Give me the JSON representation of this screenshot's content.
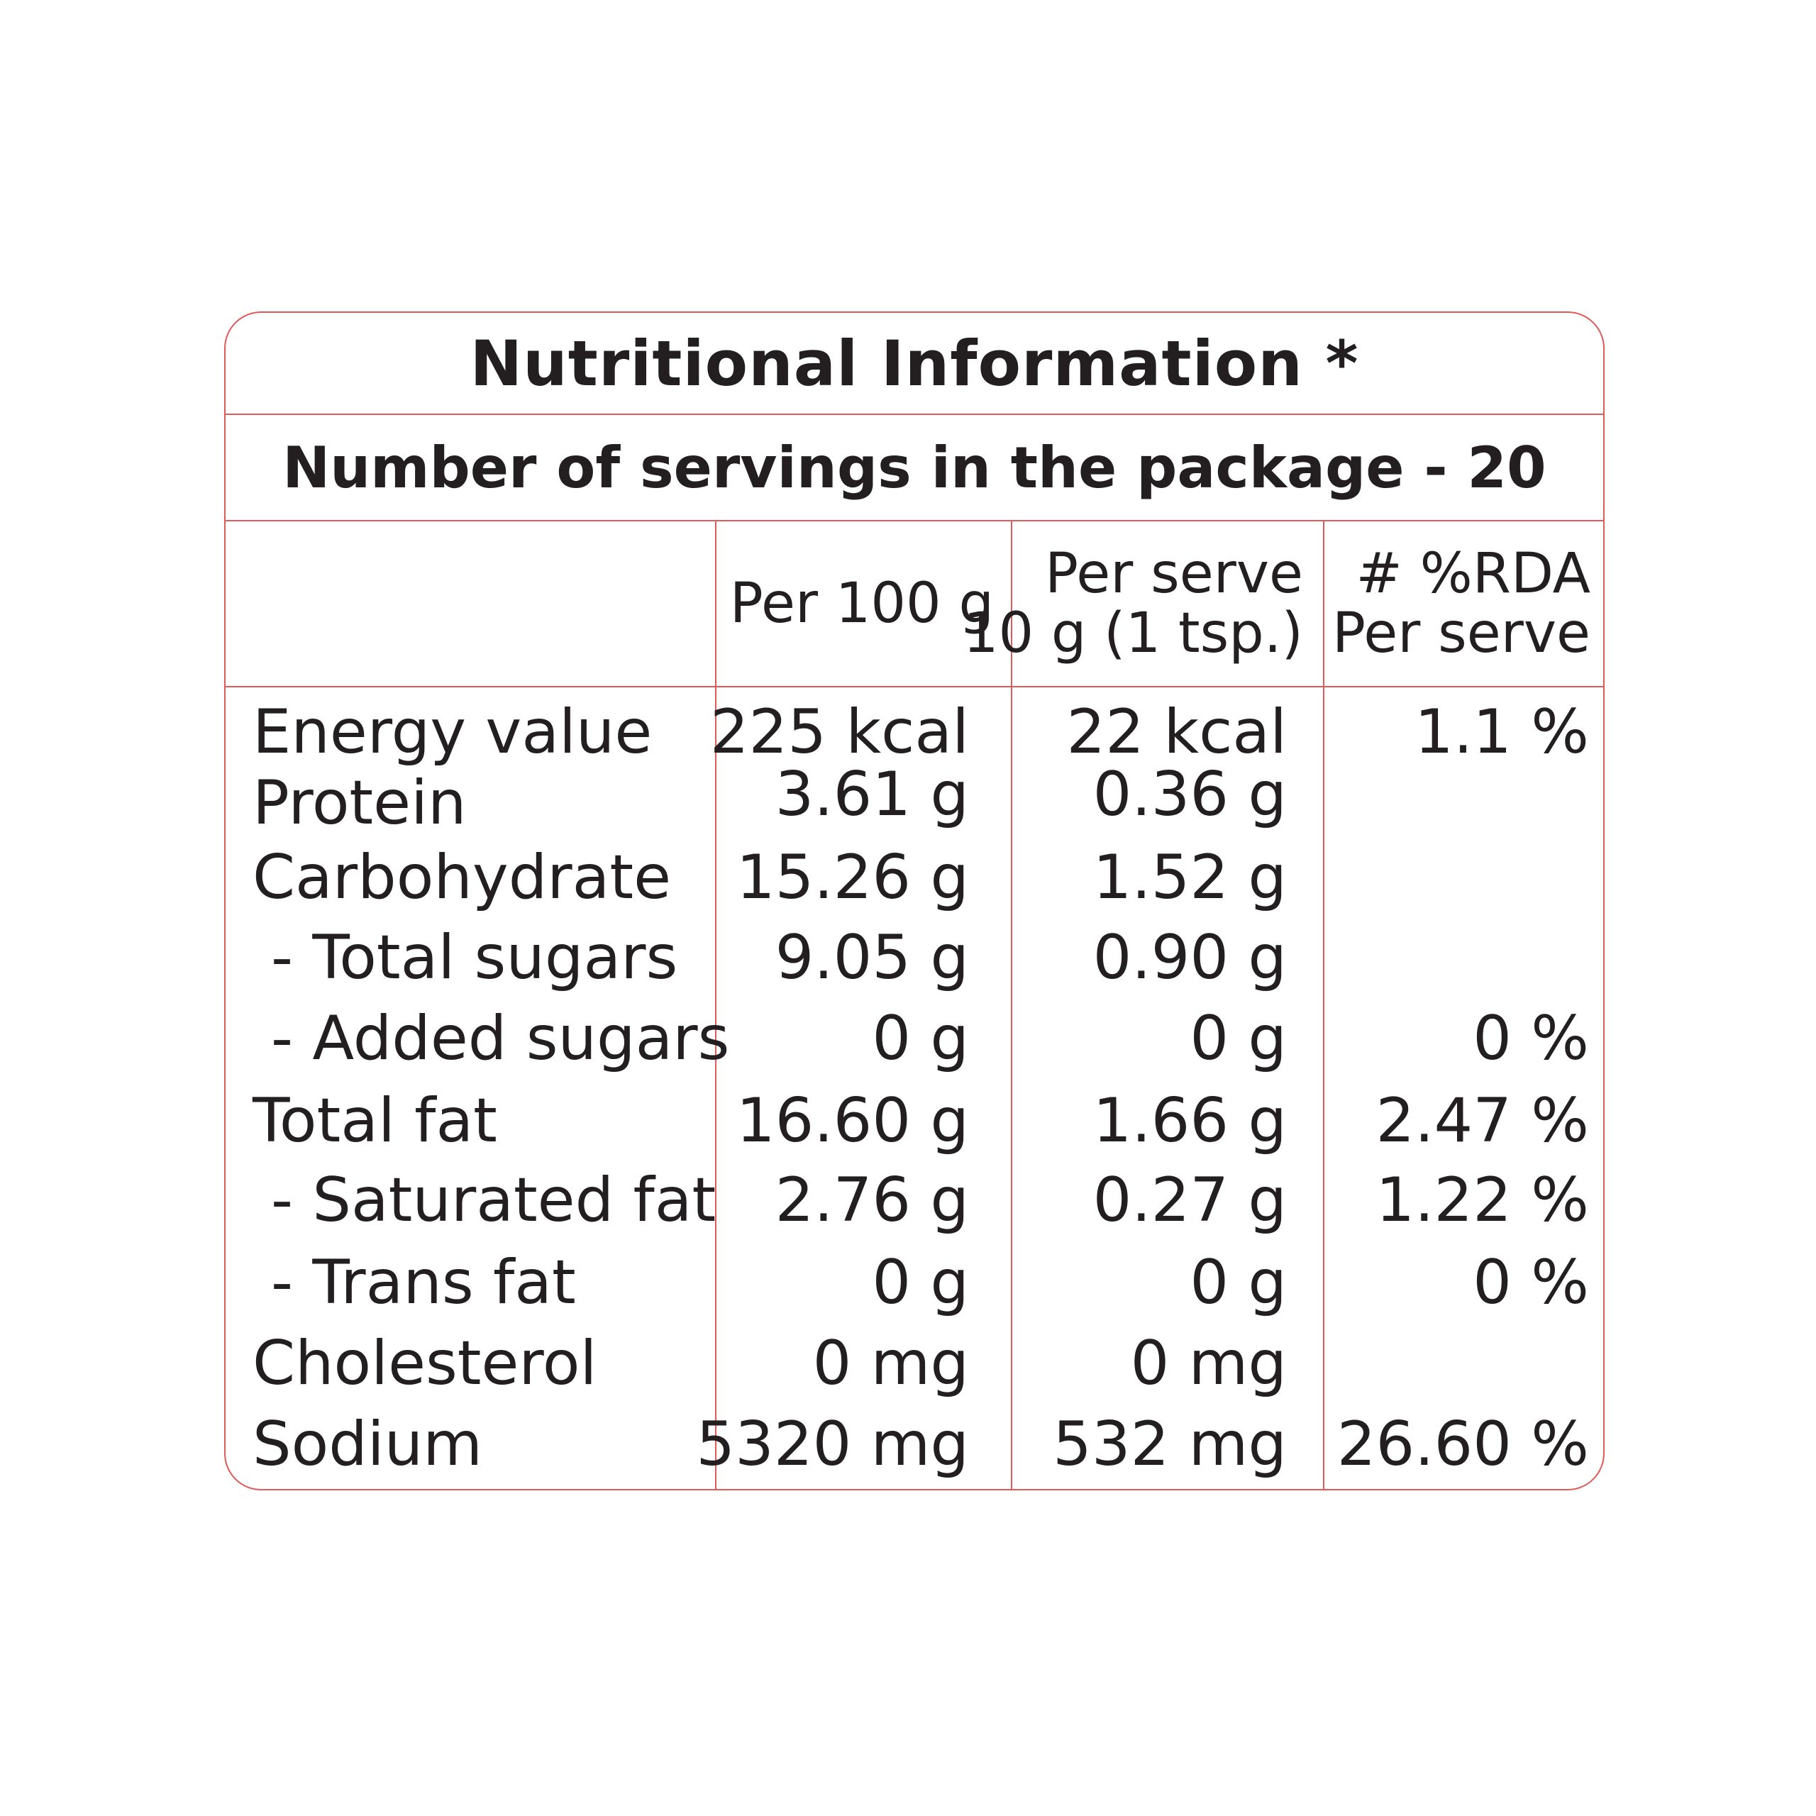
{
  "panel": {
    "title": "Nutritional Information *",
    "servings": "Number of servings in the package - 20"
  },
  "columns": {
    "per_100g": "Per 100 g",
    "per_serve_line1": "Per serve",
    "per_serve_line2": "10 g (1 tsp.)",
    "rda_line1": "# %RDA",
    "rda_line2": "Per serve"
  },
  "rows": [
    {
      "label": "Energy value",
      "per_100g": "225 kcal",
      "per_serve": "22 kcal",
      "rda": "1.1 %"
    },
    {
      "label": "Protein",
      "per_100g": "3.61 g",
      "per_serve": "0.36 g",
      "rda": ""
    },
    {
      "label": "Carbohydrate",
      "per_100g": "15.26 g",
      "per_serve": "1.52 g",
      "rda": ""
    },
    {
      "label": "- Total sugars",
      "per_100g": "9.05 g",
      "per_serve": "0.90 g",
      "rda": ""
    },
    {
      "label": "- Added sugars",
      "per_100g": "0 g",
      "per_serve": "0 g",
      "rda": "0 %"
    },
    {
      "label": "Total fat",
      "per_100g": "16.60 g",
      "per_serve": "1.66 g",
      "rda": "2.47 %"
    },
    {
      "label": "- Saturated fat",
      "per_100g": "2.76 g",
      "per_serve": "0.27 g",
      "rda": "1.22 %"
    },
    {
      "label": "- Trans fat",
      "per_100g": "0 g",
      "per_serve": "0 g",
      "rda": "0 %"
    },
    {
      "label": "Cholesterol",
      "per_100g": "0 mg",
      "per_serve": "0 mg",
      "rda": ""
    },
    {
      "label": "Sodium",
      "per_100g": "5320 mg",
      "per_serve": "532 mg",
      "rda": "26.60 %"
    }
  ],
  "colors": {
    "border": "#e05a5a",
    "text": "#231f20"
  }
}
